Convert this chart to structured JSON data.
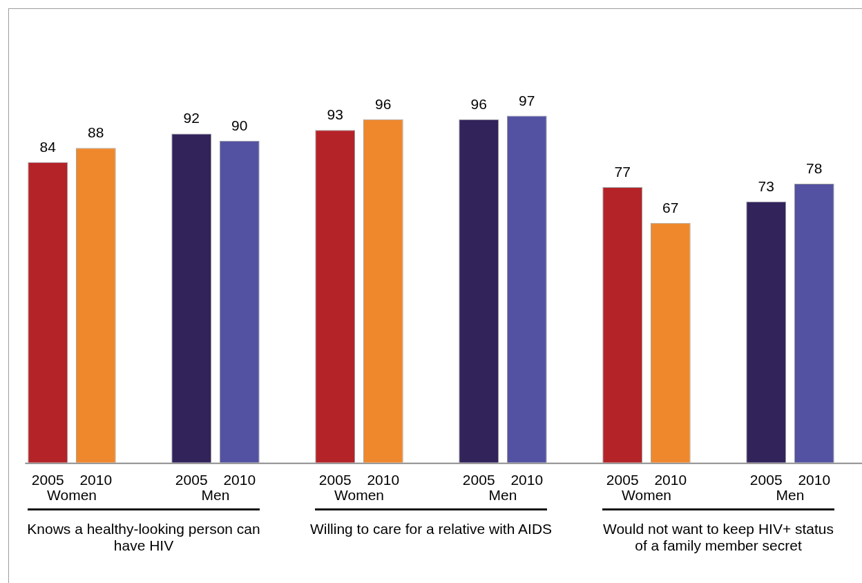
{
  "chart_data": {
    "type": "bar",
    "categories": [
      "Women",
      "Men",
      "Women",
      "Men",
      "Women",
      "Men"
    ],
    "series": [
      {
        "name": "2005",
        "colors": [
          "#b42328",
          "#32235b",
          "#b42328",
          "#32235b",
          "#b42328",
          "#32235b"
        ],
        "values": [
          84,
          92,
          93,
          96,
          77,
          73
        ]
      },
      {
        "name": "2010",
        "colors": [
          "#ef882c",
          "#5352a2",
          "#ef882c",
          "#5352a2",
          "#ef882c",
          "#5352a2"
        ],
        "values": [
          88,
          90,
          96,
          97,
          67,
          78
        ]
      }
    ],
    "annotations": [
      "Knows a healthy-looking person can have HIV",
      "Willing to care for a relative with AIDS",
      "Would not want to keep HIV+ status of a family member secret"
    ],
    "data_labels": true,
    "legend": false,
    "grid": false,
    "tick_labels": "x"
  }
}
